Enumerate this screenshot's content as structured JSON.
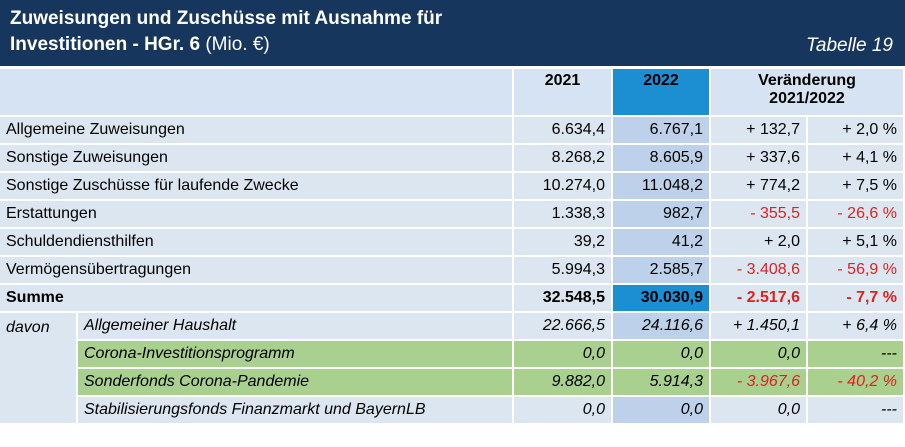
{
  "header": {
    "title_line1": "Zuweisungen und Zuschüsse mit Ausnahme für",
    "title_line2_bold": "Investitionen - HGr. 6",
    "title_line2_rest": " (Mio. €)",
    "table_no": "Tabelle 19"
  },
  "columns": {
    "y2021": "2021",
    "y2022": "2022",
    "change_line1": "Veränderung",
    "change_line2": "2021/2022"
  },
  "rows": [
    {
      "label": "Allgemeine Zuweisungen",
      "v2021": "6.634,4",
      "v2022": "6.767,1",
      "abs": "+ 132,7",
      "pct": "+ 2,0 %"
    },
    {
      "label": "Sonstige Zuweisungen",
      "v2021": "8.268,2",
      "v2022": "8.605,9",
      "abs": "+ 337,6",
      "pct": "+ 4,1 %"
    },
    {
      "label": "Sonstige Zuschüsse für laufende Zwecke",
      "v2021": "10.274,0",
      "v2022": "11.048,2",
      "abs": "+ 774,2",
      "pct": "+ 7,5 %"
    },
    {
      "label": "Erstattungen",
      "v2021": "1.338,3",
      "v2022": "982,7",
      "abs": "- 355,5",
      "pct": "- 26,6 %"
    },
    {
      "label": "Schuldendiensthilfen",
      "v2021": "39,2",
      "v2022": "41,2",
      "abs": "+ 2,0",
      "pct": "+ 5,1 %"
    },
    {
      "label": "Vermögensübertragungen",
      "v2021": "5.994,3",
      "v2022": "2.585,7",
      "abs": "- 3.408,6",
      "pct": "- 56,9 %"
    }
  ],
  "sum": {
    "label": "Summe",
    "v2021": "32.548,5",
    "v2022": "30.030,9",
    "abs": "- 2.517,6",
    "pct": "- 7,7 %"
  },
  "davon_label": "davon",
  "subrows": [
    {
      "label": "Allgemeiner Haushalt",
      "v2021": "22.666,5",
      "v2022": "24.116,6",
      "abs": "+ 1.450,1",
      "pct": "+ 6,4 %"
    },
    {
      "label": "Corona-Investitionsprogramm",
      "v2021": "0,0",
      "v2022": "0,0",
      "abs": "0,0",
      "pct": "---"
    },
    {
      "label": "Sonderfonds Corona-Pandemie",
      "v2021": "9.882,0",
      "v2022": "5.914,3",
      "abs": "- 3.967,6",
      "pct": "- 40,2 %"
    },
    {
      "label": "Stabilisierungsfonds Finanzmarkt und BayernLB",
      "v2021": "0,0",
      "v2022": "0,0",
      "abs": "0,0",
      "pct": "---"
    }
  ]
}
